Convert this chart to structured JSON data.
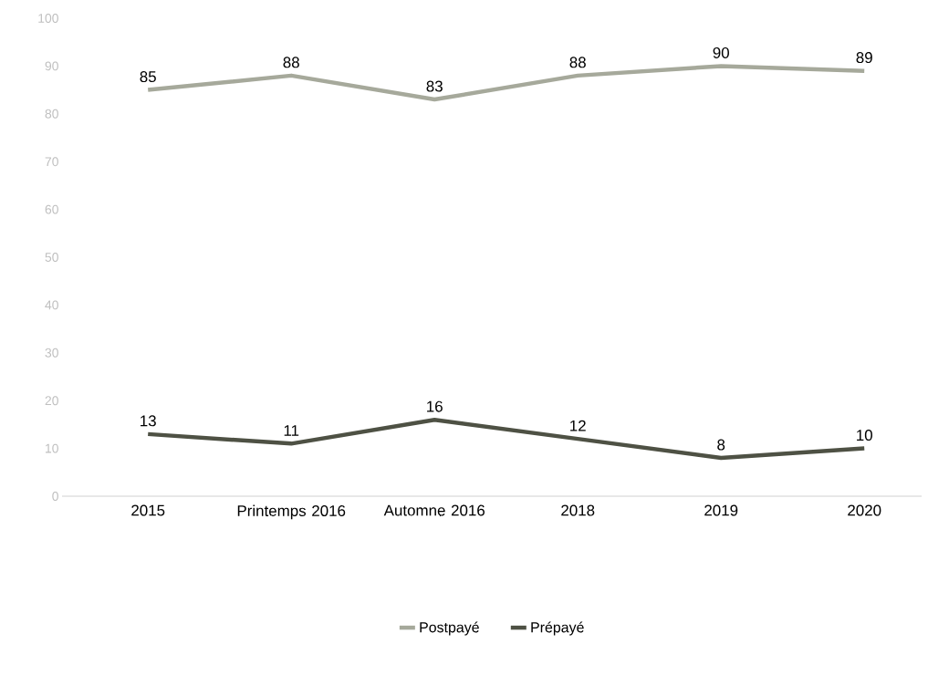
{
  "chart_data": {
    "type": "line",
    "categories": [
      "2015",
      "Printemps 2016",
      "Automne 2016",
      "2018",
      "2019",
      "2020"
    ],
    "series": [
      {
        "name": "Postpayé",
        "color": "#a6a99b",
        "values": [
          85,
          88,
          83,
          88,
          90,
          89
        ]
      },
      {
        "name": "Prépayé",
        "color": "#4e5144",
        "values": [
          13,
          11,
          16,
          12,
          8,
          10
        ]
      }
    ],
    "ylim": [
      0,
      100
    ],
    "yticks": [
      0,
      10,
      20,
      30,
      40,
      50,
      60,
      70,
      80,
      90,
      100
    ],
    "data_labels": true,
    "legend": "bottom",
    "grid": false,
    "marker": "none",
    "line_style": "solid"
  }
}
